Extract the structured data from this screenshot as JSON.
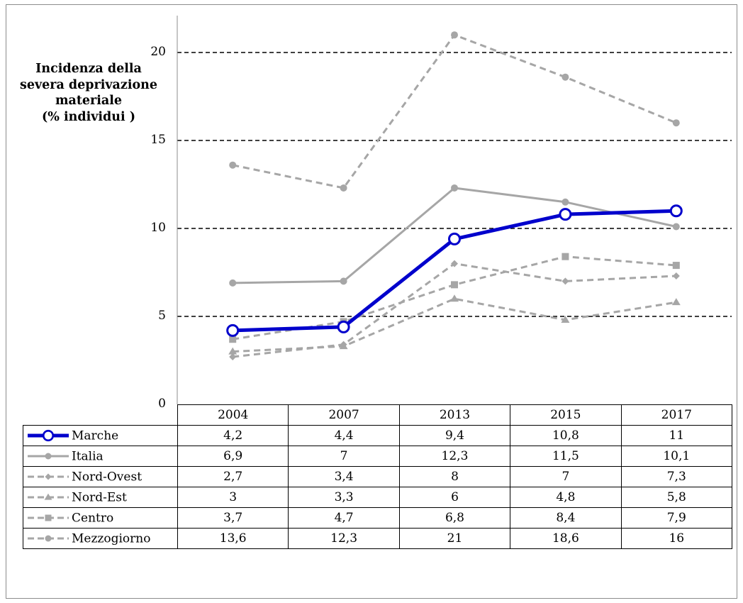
{
  "chart_data": {
    "type": "line",
    "ylabel": [
      "Incidenza della",
      "severa deprivazione",
      "materiale",
      "(% individui )"
    ],
    "yticks": [
      0,
      5,
      10,
      15,
      20
    ],
    "ylim": [
      0,
      22
    ],
    "grid": "dashed horizontal",
    "categories": [
      "2004",
      "2007",
      "2013",
      "2015",
      "2017"
    ],
    "series": [
      {
        "name": "Marche",
        "values": [
          4.2,
          4.4,
          9.4,
          10.8,
          11
        ],
        "labels": [
          "4,2",
          "4,4",
          "9,4",
          "10,8",
          "11"
        ],
        "color": "#0000cc",
        "style": "solid-thick",
        "marker": "circle-open"
      },
      {
        "name": "Italia",
        "values": [
          6.9,
          7,
          12.3,
          11.5,
          10.1
        ],
        "labels": [
          "6,9",
          "7",
          "12,3",
          "11,5",
          "10,1"
        ],
        "color": "#a6a6a6",
        "style": "solid",
        "marker": "circle"
      },
      {
        "name": "Nord-Ovest",
        "values": [
          2.7,
          3.4,
          8,
          7,
          7.3
        ],
        "labels": [
          "2,7",
          "3,4",
          "8",
          "7",
          "7,3"
        ],
        "color": "#a6a6a6",
        "style": "dashed",
        "marker": "diamond"
      },
      {
        "name": "Nord-Est",
        "values": [
          3,
          3.3,
          6,
          4.8,
          5.8
        ],
        "labels": [
          "3",
          "3,3",
          "6",
          "4,8",
          "5,8"
        ],
        "color": "#a6a6a6",
        "style": "dashed",
        "marker": "triangle"
      },
      {
        "name": "Centro",
        "values": [
          3.7,
          4.7,
          6.8,
          8.4,
          7.9
        ],
        "labels": [
          "3,7",
          "4,7",
          "6,8",
          "8,4",
          "7,9"
        ],
        "color": "#a6a6a6",
        "style": "dashed",
        "marker": "square"
      },
      {
        "name": "Mezzogiorno",
        "values": [
          13.6,
          12.3,
          21,
          18.6,
          16
        ],
        "labels": [
          "13,6",
          "12,3",
          "21",
          "18,6",
          "16"
        ],
        "color": "#a6a6a6",
        "style": "dashed",
        "marker": "circle"
      }
    ]
  }
}
